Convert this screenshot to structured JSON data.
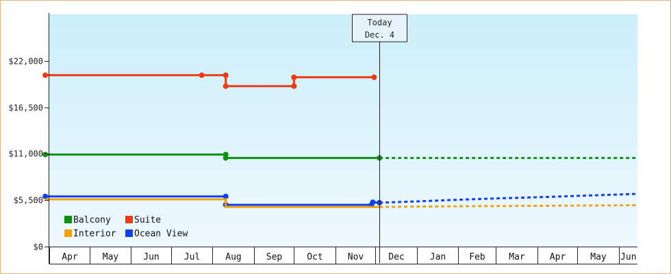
{
  "chart_data": {
    "type": "line",
    "title": "",
    "xlabel": "",
    "ylabel": "",
    "ylim": [
      0,
      27500
    ],
    "y_ticks": [
      {
        "value": 0,
        "label": "$0"
      },
      {
        "value": 5500,
        "label": "$5,500"
      },
      {
        "value": 11000,
        "label": "$11,000"
      },
      {
        "value": 16500,
        "label": "$16,500"
      },
      {
        "value": 22000,
        "label": "$22,000"
      }
    ],
    "x_start": "2024-04-01",
    "x_end": "2025-06-15",
    "months": [
      {
        "label": "Apr",
        "start": "2024-04-01"
      },
      {
        "label": "May",
        "start": "2024-05-01"
      },
      {
        "label": "Jun",
        "start": "2024-06-01"
      },
      {
        "label": "Jul",
        "start": "2024-07-01"
      },
      {
        "label": "Aug",
        "start": "2024-08-01"
      },
      {
        "label": "Sep",
        "start": "2024-09-01"
      },
      {
        "label": "Oct",
        "start": "2024-10-01"
      },
      {
        "label": "Nov",
        "start": "2024-11-01"
      },
      {
        "label": "Dec",
        "start": "2024-12-01"
      },
      {
        "label": "Jan",
        "start": "2025-01-01"
      },
      {
        "label": "Feb",
        "start": "2025-02-01"
      },
      {
        "label": "Mar",
        "start": "2025-03-01"
      },
      {
        "label": "Apr",
        "start": "2025-04-01"
      },
      {
        "label": "May",
        "start": "2025-05-01"
      },
      {
        "label": "Jun",
        "start": "2025-06-01"
      }
    ],
    "today": {
      "line1": "Today",
      "line2": "Dec. 4",
      "date": "2024-12-04"
    },
    "grid": false,
    "legend_position": "bottom-left",
    "series": [
      {
        "name": "Suite",
        "color": "#ee3a10",
        "points": [
          {
            "x": "2024-03-29",
            "y": 20300,
            "dot": true
          },
          {
            "x": "2024-07-24",
            "y": 20300,
            "dot": true
          },
          {
            "x": "2024-08-11",
            "y": 20300,
            "dot": true
          },
          {
            "x": "2024-08-11",
            "y": 19000,
            "dot": true
          },
          {
            "x": "2024-10-01",
            "y": 19000,
            "dot": true
          },
          {
            "x": "2024-10-01",
            "y": 20050,
            "dot": true
          },
          {
            "x": "2024-11-30",
            "y": 20050,
            "dot": true
          }
        ],
        "forecast": []
      },
      {
        "name": "Balcony",
        "color": "#109010",
        "points": [
          {
            "x": "2024-03-29",
            "y": 10900,
            "dot": true
          },
          {
            "x": "2024-08-11",
            "y": 10900,
            "dot": true
          },
          {
            "x": "2024-08-11",
            "y": 10500,
            "dot": true
          },
          {
            "x": "2024-12-04",
            "y": 10500,
            "dot": true
          }
        ],
        "forecast": [
          {
            "x": "2024-12-04",
            "y": 10500
          },
          {
            "x": "2025-06-15",
            "y": 10500
          }
        ]
      },
      {
        "name": "Ocean View",
        "color": "#1040f0",
        "points": [
          {
            "x": "2024-03-29",
            "y": 5950,
            "dot": true
          },
          {
            "x": "2024-08-11",
            "y": 5950,
            "dot": true
          },
          {
            "x": "2024-08-11",
            "y": 4950,
            "dot": true
          },
          {
            "x": "2024-11-28",
            "y": 4950,
            "dot": true
          },
          {
            "x": "2024-11-29",
            "y": 5250,
            "dot": true
          },
          {
            "x": "2024-12-04",
            "y": 5200,
            "dot": true
          }
        ],
        "forecast": [
          {
            "x": "2024-12-04",
            "y": 5200
          },
          {
            "x": "2025-01-01",
            "y": 5350
          },
          {
            "x": "2025-02-01",
            "y": 5550
          },
          {
            "x": "2025-03-01",
            "y": 5700
          },
          {
            "x": "2025-04-01",
            "y": 5850
          },
          {
            "x": "2025-05-01",
            "y": 6000
          },
          {
            "x": "2025-06-15",
            "y": 6250
          }
        ]
      },
      {
        "name": "Interior",
        "color": "#f0a010",
        "points": [
          {
            "x": "2024-03-29",
            "y": 5600,
            "dot": false
          },
          {
            "x": "2024-08-11",
            "y": 5600,
            "dot": false
          },
          {
            "x": "2024-08-11",
            "y": 4700,
            "dot": false
          },
          {
            "x": "2024-12-04",
            "y": 4700,
            "dot": false
          }
        ],
        "forecast": [
          {
            "x": "2024-12-04",
            "y": 4700
          },
          {
            "x": "2025-02-01",
            "y": 4780
          },
          {
            "x": "2025-04-01",
            "y": 4830
          },
          {
            "x": "2025-06-15",
            "y": 4900
          }
        ]
      }
    ],
    "legend": [
      {
        "name": "Balcony",
        "color": "#109010"
      },
      {
        "name": "Suite",
        "color": "#ee3a10"
      },
      {
        "name": "Interior",
        "color": "#f0a010"
      },
      {
        "name": "Ocean View",
        "color": "#1040f0"
      }
    ]
  }
}
